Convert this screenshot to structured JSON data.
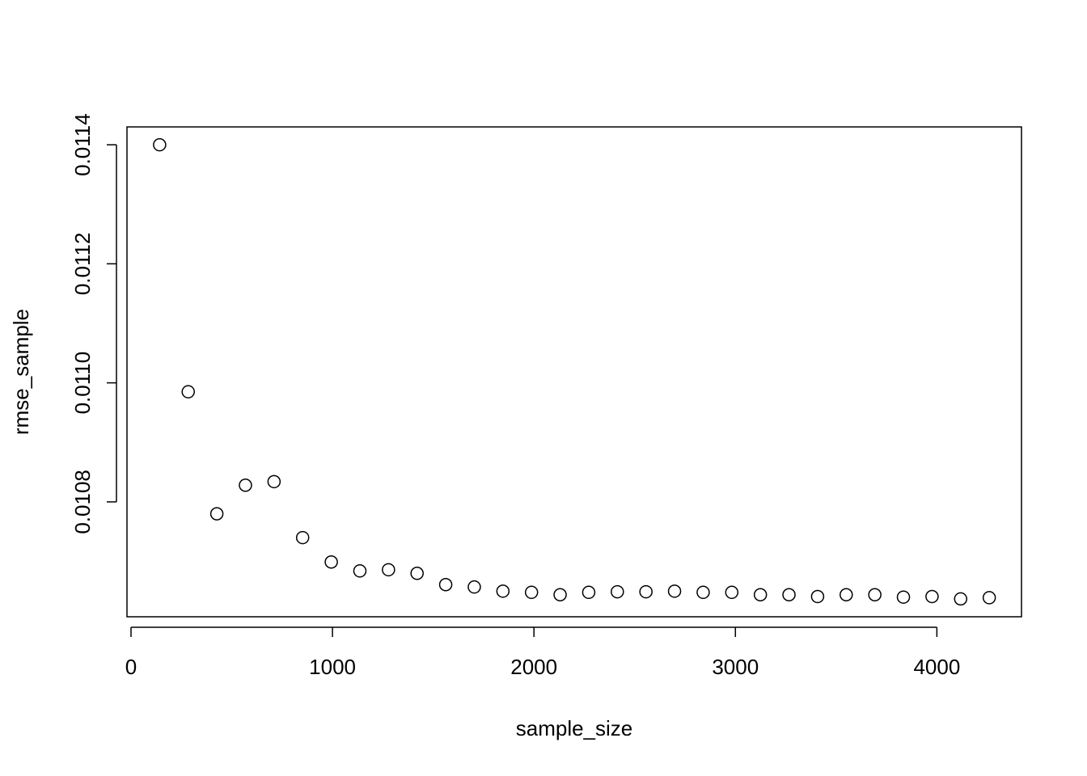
{
  "chart_data": {
    "type": "scatter",
    "title": "",
    "xlabel": "sample_size",
    "ylabel": "rmse_sample",
    "xlim": [
      -20,
      4420
    ],
    "ylim": [
      0.010607,
      0.01143
    ],
    "xticks": [
      0,
      1000,
      2000,
      3000,
      4000
    ],
    "xtick_labels": [
      "0",
      "1000",
      "2000",
      "3000",
      "4000"
    ],
    "yticks": [
      0.0108,
      0.011,
      0.0112,
      0.0114
    ],
    "ytick_labels": [
      "0.0108",
      "0.0110",
      "0.0112",
      "0.0114"
    ],
    "grid": false,
    "marker": "open-circle",
    "x": [
      142,
      284,
      426,
      568,
      710,
      852,
      994,
      1136,
      1278,
      1420,
      1562,
      1704,
      1846,
      1988,
      2130,
      2272,
      2414,
      2556,
      2698,
      2840,
      2982,
      3124,
      3266,
      3408,
      3550,
      3692,
      3834,
      3976,
      4118,
      4260
    ],
    "y": [
      0.0114,
      0.010985,
      0.01078,
      0.010828,
      0.010834,
      0.01074,
      0.010699,
      0.010684,
      0.010686,
      0.01068,
      0.010661,
      0.010657,
      0.01065,
      0.010648,
      0.010644,
      0.010648,
      0.010649,
      0.010649,
      0.01065,
      0.010648,
      0.010648,
      0.010644,
      0.010644,
      0.010641,
      0.010644,
      0.010644,
      0.01064,
      0.010641,
      0.010637,
      0.010639
    ]
  }
}
